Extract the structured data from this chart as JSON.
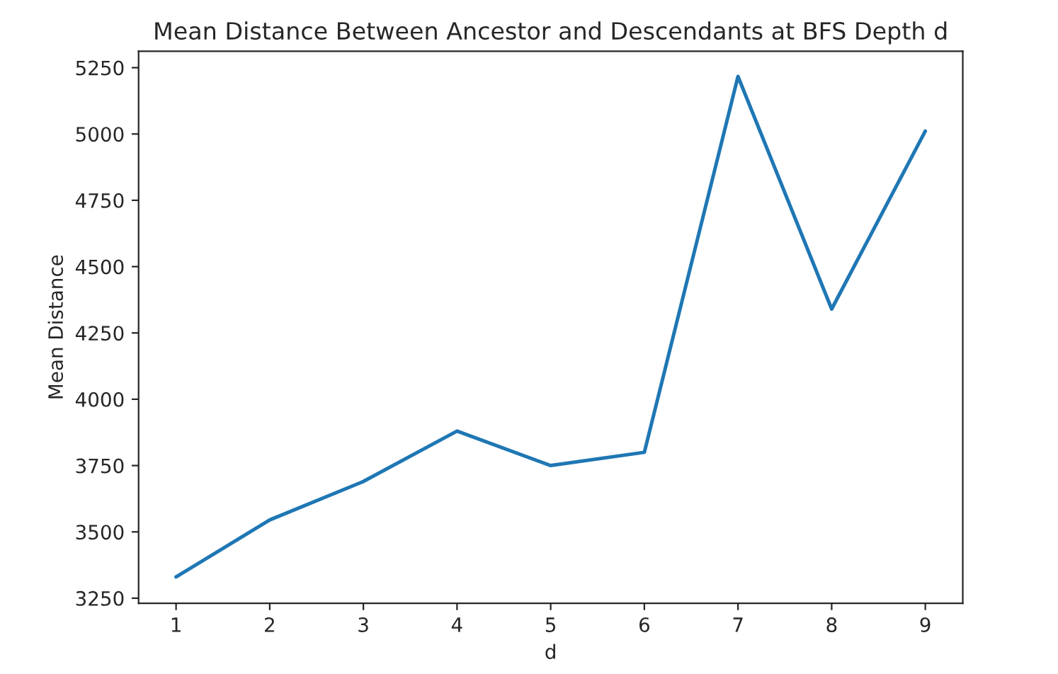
{
  "chart_data": {
    "type": "line",
    "title": "Mean Distance Between Ancestor and Descendants at BFS Depth d",
    "xlabel": "d",
    "ylabel": "Mean Distance",
    "x": [
      1,
      2,
      3,
      4,
      5,
      6,
      7,
      8,
      9
    ],
    "series": [
      {
        "color": "#1f77b4",
        "values": [
          3330,
          3545,
          3690,
          3880,
          3750,
          3800,
          5217,
          4340,
          5011
        ]
      }
    ],
    "xlim": [
      0.6,
      9.4
    ],
    "xticks": [
      1,
      2,
      3,
      4,
      5,
      6,
      7,
      8,
      9
    ],
    "ylim": [
      3231,
      5312
    ],
    "yticks": [
      3250,
      3500,
      3750,
      4000,
      4250,
      4500,
      4750,
      5000,
      5250
    ],
    "grid": false,
    "marker": "none",
    "line_style": "solid"
  }
}
